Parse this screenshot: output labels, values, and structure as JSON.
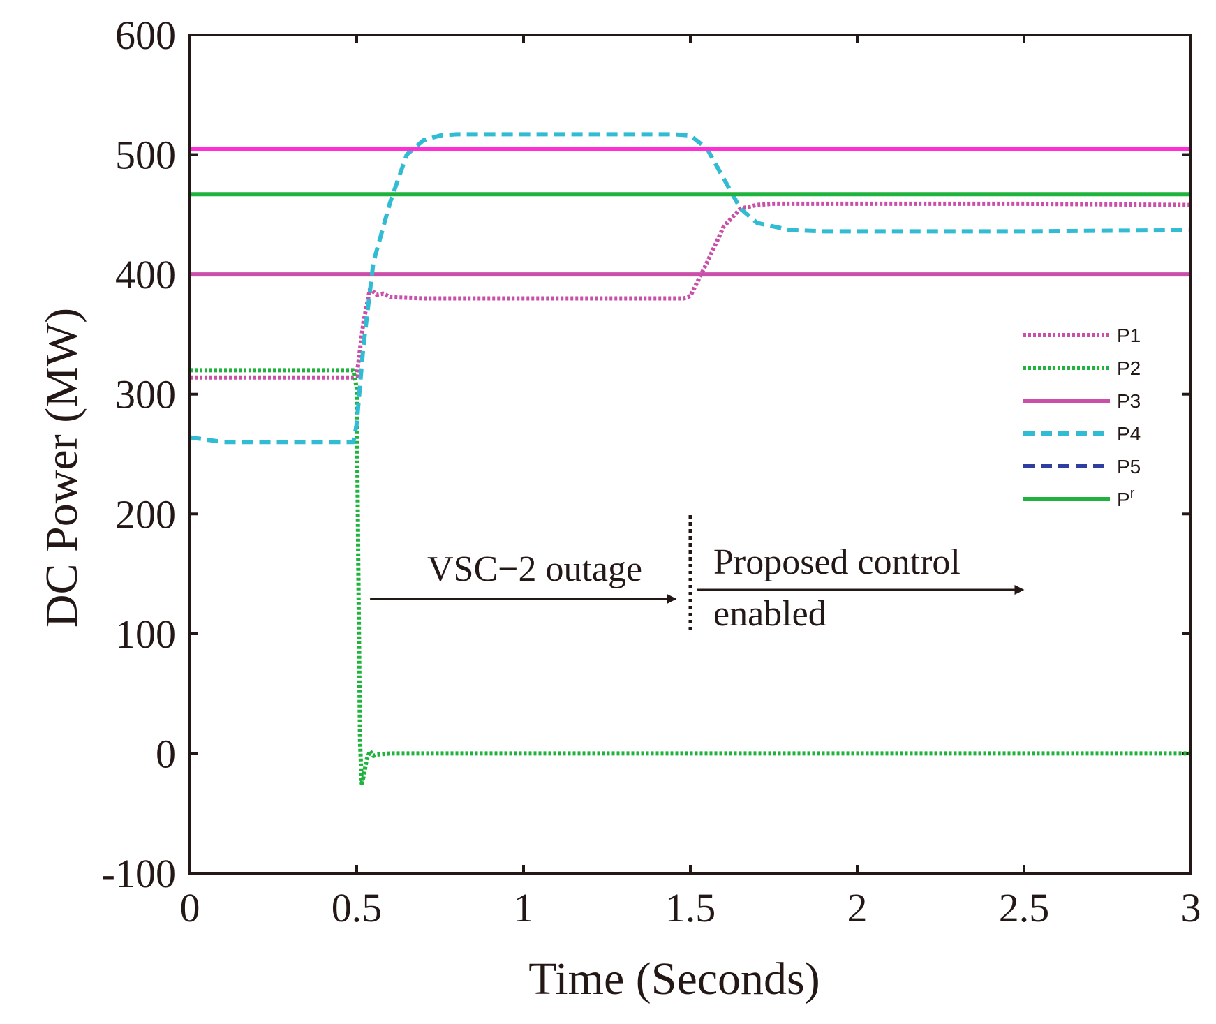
{
  "chart_data": {
    "type": "line",
    "xlabel": "Time (Seconds)",
    "ylabel": "DC   Power (MW)",
    "xlim": [
      0,
      3
    ],
    "ylim": [
      -100,
      600
    ],
    "xticks": [
      0,
      0.5,
      1,
      1.5,
      2,
      2.5,
      3
    ],
    "xtick_labels": [
      "0",
      "0.5",
      "1",
      "1.5",
      "2",
      "2.5",
      "3"
    ],
    "yticks": [
      -100,
      0,
      100,
      200,
      300,
      400,
      500,
      600
    ],
    "ytick_labels": [
      "-100",
      "0",
      "100",
      "200",
      "300",
      "400",
      "500",
      "600"
    ],
    "legend_position": "right",
    "series": [
      {
        "name": "P1",
        "label": "P1",
        "color": "#c94fa8",
        "style": "dotted",
        "x": [
          0,
          0.49,
          0.5,
          0.52,
          0.54,
          0.56,
          0.58,
          0.6,
          0.7,
          1.0,
          1.48,
          1.5,
          1.55,
          1.6,
          1.65,
          1.7,
          1.75,
          1.8,
          2.0,
          2.5,
          3.0
        ],
        "y": [
          314,
          314,
          315,
          360,
          388,
          383,
          384,
          381,
          380,
          380,
          380,
          382,
          410,
          440,
          455,
          458,
          459,
          459,
          459,
          459,
          458
        ]
      },
      {
        "name": "P2",
        "label": "P2",
        "color": "#1fb33d",
        "style": "dotted",
        "x": [
          0,
          0.49,
          0.5,
          0.505,
          0.51,
          0.515,
          0.52,
          0.53,
          0.54,
          0.55,
          0.56,
          0.6,
          1.0,
          2.0,
          3.0
        ],
        "y": [
          320,
          320,
          305,
          150,
          10,
          -25,
          -20,
          -5,
          2,
          -2,
          -1,
          0,
          0,
          0,
          0
        ]
      },
      {
        "name": "P3",
        "label": "P3",
        "color": "#c94fa8",
        "style": "solid",
        "x": [
          0,
          3
        ],
        "y": [
          400,
          400
        ]
      },
      {
        "name": "P4",
        "label": "P4",
        "color": "#32bcd4",
        "style": "dashed",
        "x": [
          0,
          0.1,
          0.49,
          0.5,
          0.52,
          0.55,
          0.6,
          0.65,
          0.7,
          0.75,
          0.8,
          1.0,
          1.45,
          1.5,
          1.55,
          1.6,
          1.65,
          1.7,
          1.8,
          1.9,
          2.0,
          2.5,
          3.0
        ],
        "y": [
          264,
          260,
          260,
          275,
          340,
          410,
          460,
          500,
          512,
          516,
          517,
          517,
          517,
          516,
          505,
          480,
          455,
          443,
          437,
          436,
          436,
          436,
          437
        ]
      },
      {
        "name": "P5",
        "label": "P5",
        "color": "#2e3f9f",
        "style": "dashed",
        "x": [],
        "y": []
      },
      {
        "name": "Pr",
        "label": "P",
        "label_sup": "r",
        "color": "#1fb33d",
        "style": "solid",
        "x": [
          0,
          3
        ],
        "y": [
          467,
          467
        ]
      },
      {
        "name": "P5-reference",
        "label": "",
        "color": "#ff2fd6",
        "style": "solid",
        "x": [
          0,
          3
        ],
        "y": [
          505,
          505
        ]
      }
    ],
    "annotations": {
      "outage_label": "VSC−2 outage",
      "control_label_1": "Proposed control",
      "control_label_2": "enabled",
      "event_marker_x": 1.5
    }
  }
}
